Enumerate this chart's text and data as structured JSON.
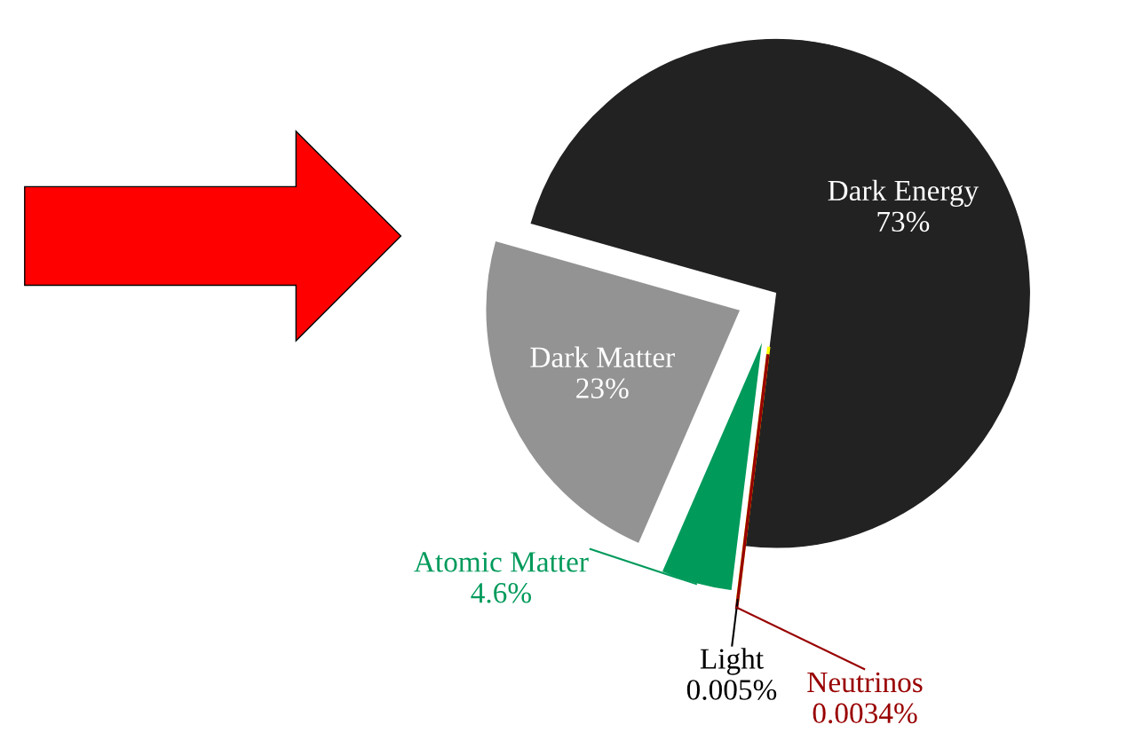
{
  "chart_data": {
    "type": "pie",
    "categories": [
      "Dark Energy",
      "Dark Matter",
      "Atomic Matter",
      "Light",
      "Neutrinos"
    ],
    "values": [
      73,
      23,
      4.6,
      0.005,
      0.0034
    ],
    "value_labels": [
      "73%",
      "23%",
      "4.6%",
      "0.005%",
      "0.0034%"
    ],
    "colors": [
      "#222222",
      "#939393",
      "#009a5b",
      "#ffff00",
      "#990000"
    ]
  }
}
